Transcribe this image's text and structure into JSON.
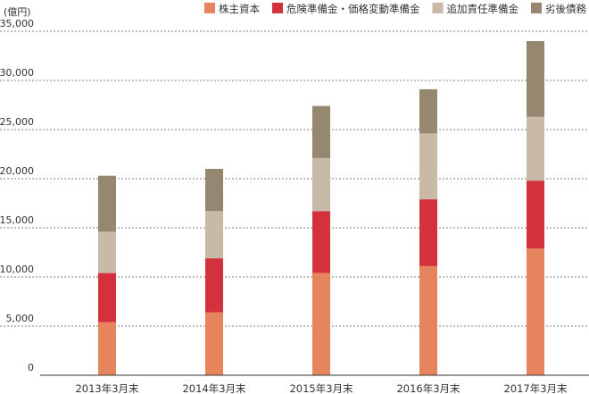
{
  "chart_data": {
    "type": "bar",
    "stacked": true,
    "unit_label": "(億円)",
    "categories": [
      "2013年3月末",
      "2014年3月末",
      "2015年3月末",
      "2016年3月末",
      "2017年3月末"
    ],
    "series": [
      {
        "name": "株主資本",
        "color": "#e5845d",
        "values": [
          5400,
          6400,
          10400,
          11100,
          12900
        ]
      },
      {
        "name": "危険準備金・価格変動準備金",
        "color": "#d3323c",
        "values": [
          5000,
          5500,
          6300,
          6800,
          6900
        ]
      },
      {
        "name": "追加責任準備金",
        "color": "#c8baa6",
        "values": [
          4200,
          4800,
          5400,
          6700,
          6500
        ]
      },
      {
        "name": "劣後債務",
        "color": "#968770",
        "values": [
          5700,
          4300,
          5300,
          4500,
          7700
        ]
      }
    ],
    "y_ticks": [
      "0",
      "5,000",
      "10,000",
      "15,000",
      "20,000",
      "25,000",
      "30,000",
      "35,000"
    ],
    "ylim": [
      0,
      35000
    ],
    "grid": true,
    "legend_position": "top-right"
  }
}
